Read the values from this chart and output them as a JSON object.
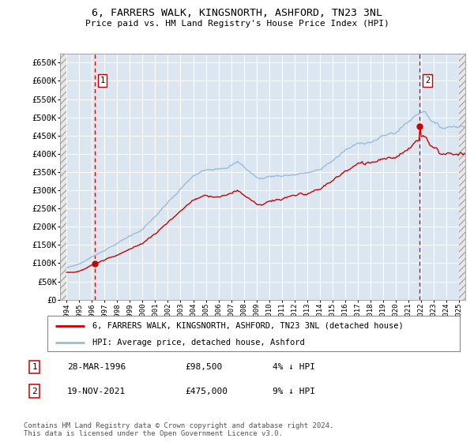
{
  "title1": "6, FARRERS WALK, KINGSNORTH, ASHFORD, TN23 3NL",
  "title2": "Price paid vs. HM Land Registry's House Price Index (HPI)",
  "sale1_date": "28-MAR-1996",
  "sale1_price": 98500,
  "sale1_label": "4% ↓ HPI",
  "sale2_date": "19-NOV-2021",
  "sale2_price": 475000,
  "sale2_label": "9% ↓ HPI",
  "sale1_x": 1996.24,
  "sale2_x": 2021.89,
  "ylim": [
    0,
    675000
  ],
  "xlim_left": 1993.5,
  "xlim_right": 2025.5,
  "yticks": [
    0,
    50000,
    100000,
    150000,
    200000,
    250000,
    300000,
    350000,
    400000,
    450000,
    500000,
    550000,
    600000,
    650000
  ],
  "ytick_labels": [
    "£0",
    "£50K",
    "£100K",
    "£150K",
    "£200K",
    "£250K",
    "£300K",
    "£350K",
    "£400K",
    "£450K",
    "£500K",
    "£550K",
    "£600K",
    "£650K"
  ],
  "xticks": [
    1994,
    1995,
    1996,
    1997,
    1998,
    1999,
    2000,
    2001,
    2002,
    2003,
    2004,
    2005,
    2006,
    2007,
    2008,
    2009,
    2010,
    2011,
    2012,
    2013,
    2014,
    2015,
    2016,
    2017,
    2018,
    2019,
    2020,
    2021,
    2022,
    2023,
    2024,
    2025
  ],
  "bg_color": "#dce6f1",
  "line_color_property": "#cc0000",
  "line_color_hpi": "#99bbdd",
  "grid_color": "#ffffff",
  "dashed_line_color": "#cc0000",
  "legend_label1": "6, FARRERS WALK, KINGSNORTH, ASHFORD, TN23 3NL (detached house)",
  "legend_label2": "HPI: Average price, detached house, Ashford",
  "footer": "Contains HM Land Registry data © Crown copyright and database right 2024.\nThis data is licensed under the Open Government Licence v3.0."
}
